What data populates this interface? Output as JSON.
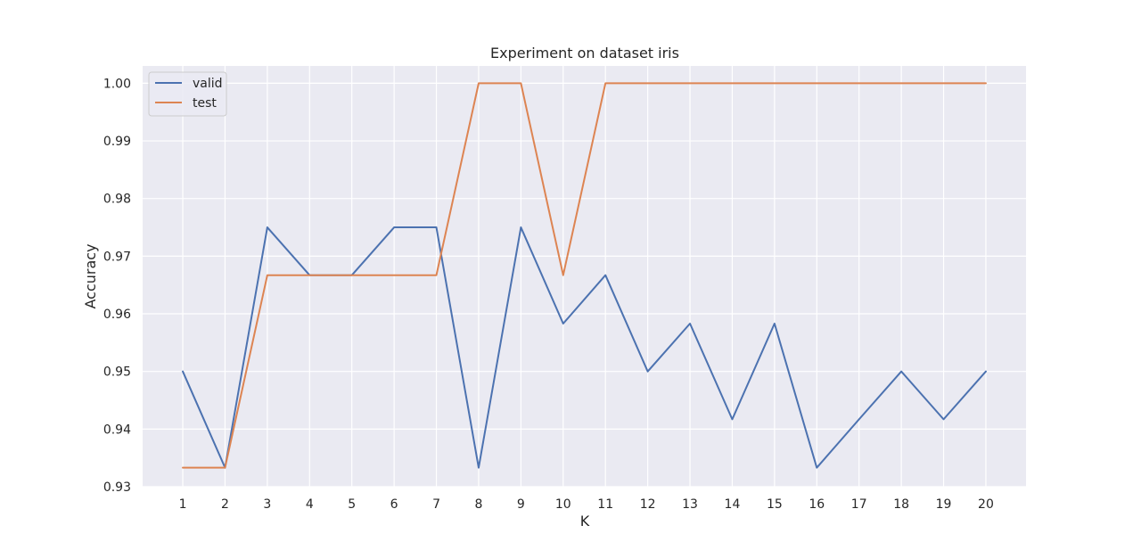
{
  "chart_data": {
    "type": "line",
    "title": "Experiment on dataset iris",
    "xlabel": "K",
    "ylabel": "Accuracy",
    "x": [
      1,
      2,
      3,
      4,
      5,
      6,
      7,
      8,
      9,
      10,
      11,
      12,
      13,
      14,
      15,
      16,
      17,
      18,
      19,
      20
    ],
    "xlim": [
      0.05,
      20.95
    ],
    "ylim": [
      0.93,
      1.003
    ],
    "yticks": [
      0.93,
      0.94,
      0.95,
      0.96,
      0.97,
      0.98,
      0.99,
      1.0
    ],
    "ytick_labels": [
      "0.93",
      "0.94",
      "0.95",
      "0.96",
      "0.97",
      "0.98",
      "0.99",
      "1.00"
    ],
    "xtick_labels": [
      "1",
      "2",
      "3",
      "4",
      "5",
      "6",
      "7",
      "8",
      "9",
      "10",
      "11",
      "12",
      "13",
      "14",
      "15",
      "16",
      "17",
      "18",
      "19",
      "20"
    ],
    "grid": true,
    "legend_position": "top-left",
    "background_color": "#EAEAF2",
    "series": [
      {
        "name": "valid",
        "color": "#4C72B0",
        "values": [
          0.95,
          0.9333,
          0.975,
          0.9667,
          0.9667,
          0.975,
          0.975,
          0.9333,
          0.975,
          0.9583,
          0.9667,
          0.95,
          0.9583,
          0.9417,
          0.9583,
          0.9333,
          0.9417,
          0.95,
          0.9417,
          0.95
        ]
      },
      {
        "name": "test",
        "color": "#DD8452",
        "values": [
          0.9333,
          0.9333,
          0.9667,
          0.9667,
          0.9667,
          0.9667,
          0.9667,
          1.0,
          1.0,
          0.9667,
          1.0,
          1.0,
          1.0,
          1.0,
          1.0,
          1.0,
          1.0,
          1.0,
          1.0,
          1.0
        ]
      }
    ]
  }
}
